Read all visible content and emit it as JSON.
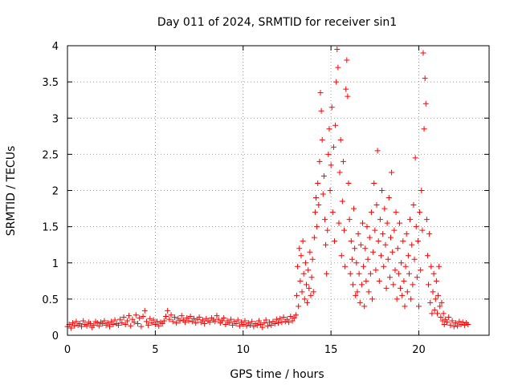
{
  "chart_data": {
    "type": "scatter",
    "title": "Day 011 of 2024, SRMTID for receiver sin1",
    "xlabel": "GPS time / hours",
    "ylabel": "SRMTID / TECUs",
    "xlim": [
      0,
      24
    ],
    "ylim": [
      0,
      4
    ],
    "xticks": [
      0,
      5,
      10,
      15,
      20
    ],
    "yticks": [
      0,
      0.5,
      1,
      1.5,
      2,
      2.5,
      3,
      3.5,
      4
    ],
    "xtick_labels": [
      "0",
      "5",
      "10",
      "15",
      "20"
    ],
    "ytick_labels": [
      "0",
      "0.5",
      "1",
      "1.5",
      "2",
      "2.5",
      "3",
      "3.5",
      "4"
    ],
    "grid": true,
    "marker": "+",
    "color": "#ff0000",
    "series": [
      {
        "name": "sin1",
        "points": [
          [
            0.0,
            0.12
          ],
          [
            0.1,
            0.15
          ],
          [
            0.2,
            0.1
          ],
          [
            0.3,
            0.17
          ],
          [
            0.4,
            0.13
          ],
          [
            0.5,
            0.19
          ],
          [
            0.6,
            0.14
          ],
          [
            0.7,
            0.16
          ],
          [
            0.8,
            0.12
          ],
          [
            0.9,
            0.2
          ],
          [
            1.0,
            0.15
          ],
          [
            1.1,
            0.13
          ],
          [
            1.2,
            0.18
          ],
          [
            1.3,
            0.16
          ],
          [
            1.4,
            0.11
          ],
          [
            1.5,
            0.14
          ],
          [
            1.6,
            0.19
          ],
          [
            1.7,
            0.17
          ],
          [
            1.8,
            0.13
          ],
          [
            1.9,
            0.18
          ],
          [
            2.0,
            0.16
          ],
          [
            2.1,
            0.2
          ],
          [
            2.2,
            0.14
          ],
          [
            2.3,
            0.17
          ],
          [
            2.4,
            0.12
          ],
          [
            2.5,
            0.19
          ],
          [
            2.6,
            0.15
          ],
          [
            2.7,
            0.21
          ],
          [
            2.8,
            0.16
          ],
          [
            2.9,
            0.14
          ],
          [
            3.0,
            0.22
          ],
          [
            3.1,
            0.17
          ],
          [
            3.2,
            0.25
          ],
          [
            3.3,
            0.15
          ],
          [
            3.4,
            0.2
          ],
          [
            3.5,
            0.27
          ],
          [
            3.6,
            0.13
          ],
          [
            3.7,
            0.22
          ],
          [
            3.8,
            0.18
          ],
          [
            3.9,
            0.28
          ],
          [
            4.0,
            0.16
          ],
          [
            4.1,
            0.24
          ],
          [
            4.2,
            0.12
          ],
          [
            4.3,
            0.26
          ],
          [
            4.4,
            0.34
          ],
          [
            4.5,
            0.19
          ],
          [
            4.6,
            0.14
          ],
          [
            4.7,
            0.23
          ],
          [
            4.8,
            0.17
          ],
          [
            4.9,
            0.21
          ],
          [
            5.0,
            0.15
          ],
          [
            5.1,
            0.19
          ],
          [
            5.2,
            0.13
          ],
          [
            5.3,
            0.18
          ],
          [
            5.4,
            0.16
          ],
          [
            5.5,
            0.2
          ],
          [
            5.6,
            0.26
          ],
          [
            5.7,
            0.34
          ],
          [
            5.8,
            0.22
          ],
          [
            5.9,
            0.28
          ],
          [
            6.0,
            0.19
          ],
          [
            6.1,
            0.25
          ],
          [
            6.2,
            0.17
          ],
          [
            6.3,
            0.23
          ],
          [
            6.4,
            0.2
          ],
          [
            6.5,
            0.27
          ],
          [
            6.6,
            0.21
          ],
          [
            6.7,
            0.18
          ],
          [
            6.8,
            0.24
          ],
          [
            6.9,
            0.2
          ],
          [
            7.0,
            0.26
          ],
          [
            7.1,
            0.19
          ],
          [
            7.2,
            0.23
          ],
          [
            7.3,
            0.17
          ],
          [
            7.4,
            0.22
          ],
          [
            7.5,
            0.25
          ],
          [
            7.6,
            0.18
          ],
          [
            7.7,
            0.21
          ],
          [
            7.8,
            0.16
          ],
          [
            7.9,
            0.23
          ],
          [
            8.0,
            0.2
          ],
          [
            8.1,
            0.18
          ],
          [
            8.2,
            0.24
          ],
          [
            8.3,
            0.21
          ],
          [
            8.4,
            0.19
          ],
          [
            8.5,
            0.27
          ],
          [
            8.6,
            0.22
          ],
          [
            8.7,
            0.17
          ],
          [
            8.8,
            0.2
          ],
          [
            8.9,
            0.24
          ],
          [
            9.0,
            0.15
          ],
          [
            9.1,
            0.2
          ],
          [
            9.2,
            0.17
          ],
          [
            9.3,
            0.22
          ],
          [
            9.4,
            0.14
          ],
          [
            9.5,
            0.19
          ],
          [
            9.6,
            0.16
          ],
          [
            9.7,
            0.21
          ],
          [
            9.8,
            0.13
          ],
          [
            9.9,
            0.18
          ],
          [
            10.0,
            0.15
          ],
          [
            10.1,
            0.2
          ],
          [
            10.2,
            0.13
          ],
          [
            10.3,
            0.17
          ],
          [
            10.4,
            0.14
          ],
          [
            10.5,
            0.19
          ],
          [
            10.6,
            0.12
          ],
          [
            10.7,
            0.16
          ],
          [
            10.8,
            0.14
          ],
          [
            10.9,
            0.2
          ],
          [
            11.0,
            0.15
          ],
          [
            11.1,
            0.11
          ],
          [
            11.2,
            0.17
          ],
          [
            11.3,
            0.21
          ],
          [
            11.4,
            0.13
          ],
          [
            11.5,
            0.18
          ],
          [
            11.6,
            0.14
          ],
          [
            11.7,
            0.19
          ],
          [
            11.8,
            0.16
          ],
          [
            11.9,
            0.22
          ],
          [
            12.0,
            0.17
          ],
          [
            12.1,
            0.23
          ],
          [
            12.2,
            0.18
          ],
          [
            12.3,
            0.25
          ],
          [
            12.4,
            0.19
          ],
          [
            12.5,
            0.22
          ],
          [
            12.6,
            0.18
          ],
          [
            12.7,
            0.26
          ],
          [
            12.8,
            0.2
          ],
          [
            12.9,
            0.24
          ],
          [
            13.0,
            0.28
          ],
          [
            13.05,
            0.55
          ],
          [
            13.1,
            0.95
          ],
          [
            13.15,
            0.4
          ],
          [
            13.2,
            1.2
          ],
          [
            13.25,
            0.75
          ],
          [
            13.3,
            1.1
          ],
          [
            13.35,
            0.6
          ],
          [
            13.4,
            1.3
          ],
          [
            13.45,
            0.85
          ],
          [
            13.5,
            0.5
          ],
          [
            13.55,
            1.0
          ],
          [
            13.6,
            0.7
          ],
          [
            13.65,
            0.45
          ],
          [
            13.7,
            0.9
          ],
          [
            13.75,
            0.65
          ],
          [
            13.8,
            1.15
          ],
          [
            13.85,
            0.55
          ],
          [
            13.9,
            0.8
          ],
          [
            13.95,
            1.05
          ],
          [
            14.0,
            0.6
          ],
          [
            14.05,
            1.35
          ],
          [
            14.1,
            1.7
          ],
          [
            14.15,
            1.9
          ],
          [
            14.2,
            1.5
          ],
          [
            14.25,
            2.1
          ],
          [
            14.3,
            1.8
          ],
          [
            14.35,
            2.4
          ],
          [
            14.4,
            3.35
          ],
          [
            14.45,
            3.1
          ],
          [
            14.5,
            2.7
          ],
          [
            14.55,
            1.95
          ],
          [
            14.6,
            2.2
          ],
          [
            14.65,
            1.6
          ],
          [
            14.7,
            1.25
          ],
          [
            14.75,
            0.85
          ],
          [
            14.8,
            1.45
          ],
          [
            14.85,
            2.5
          ],
          [
            14.9,
            2.85
          ],
          [
            14.95,
            2.0
          ],
          [
            15.0,
            2.35
          ],
          [
            15.05,
            3.15
          ],
          [
            15.1,
            1.7
          ],
          [
            15.15,
            2.6
          ],
          [
            15.2,
            1.3
          ],
          [
            15.25,
            2.9
          ],
          [
            15.3,
            3.5
          ],
          [
            15.35,
            3.95
          ],
          [
            15.4,
            3.7
          ],
          [
            15.45,
            1.55
          ],
          [
            15.5,
            2.25
          ],
          [
            15.55,
            2.7
          ],
          [
            15.6,
            1.1
          ],
          [
            15.65,
            1.85
          ],
          [
            15.7,
            2.4
          ],
          [
            15.75,
            1.45
          ],
          [
            15.8,
            0.95
          ],
          [
            15.85,
            3.4
          ],
          [
            15.9,
            3.8
          ],
          [
            15.95,
            3.3
          ],
          [
            16.0,
            2.1
          ],
          [
            16.05,
            1.6
          ],
          [
            16.1,
            0.85
          ],
          [
            16.15,
            1.3
          ],
          [
            16.2,
            1.05
          ],
          [
            16.25,
            0.7
          ],
          [
            16.3,
            1.75
          ],
          [
            16.35,
            1.2
          ],
          [
            16.4,
            0.55
          ],
          [
            16.45,
            1.0
          ],
          [
            16.5,
            0.6
          ],
          [
            16.55,
            1.4
          ],
          [
            16.6,
            0.85
          ],
          [
            16.65,
            0.45
          ],
          [
            16.7,
            1.25
          ],
          [
            16.75,
            0.7
          ],
          [
            16.8,
            1.55
          ],
          [
            16.85,
            0.95
          ],
          [
            16.9,
            0.4
          ],
          [
            16.95,
            1.2
          ],
          [
            17.0,
            0.75
          ],
          [
            17.05,
            1.5
          ],
          [
            17.1,
            1.05
          ],
          [
            17.15,
            0.6
          ],
          [
            17.2,
            1.35
          ],
          [
            17.25,
            0.85
          ],
          [
            17.3,
            1.7
          ],
          [
            17.35,
            0.5
          ],
          [
            17.4,
            1.15
          ],
          [
            17.45,
            2.1
          ],
          [
            17.5,
            1.45
          ],
          [
            17.55,
            0.9
          ],
          [
            17.6,
            1.8
          ],
          [
            17.65,
            2.55
          ],
          [
            17.7,
            1.3
          ],
          [
            17.75,
            0.75
          ],
          [
            17.8,
            1.6
          ],
          [
            17.85,
            1.1
          ],
          [
            17.9,
            2.0
          ],
          [
            17.95,
            1.4
          ],
          [
            18.0,
            0.95
          ],
          [
            18.05,
            1.75
          ],
          [
            18.1,
            1.25
          ],
          [
            18.15,
            0.65
          ],
          [
            18.2,
            1.55
          ],
          [
            18.25,
            1.05
          ],
          [
            18.3,
            1.9
          ],
          [
            18.35,
            0.8
          ],
          [
            18.4,
            1.35
          ],
          [
            18.45,
            2.25
          ],
          [
            18.5,
            1.15
          ],
          [
            18.55,
            0.7
          ],
          [
            18.6,
            1.45
          ],
          [
            18.65,
            0.9
          ],
          [
            18.7,
            1.7
          ],
          [
            18.75,
            0.5
          ],
          [
            18.8,
            1.2
          ],
          [
            18.85,
            0.85
          ],
          [
            18.9,
            1.55
          ],
          [
            18.95,
            0.65
          ],
          [
            19.0,
            1.0
          ],
          [
            19.05,
            0.55
          ],
          [
            19.1,
            1.3
          ],
          [
            19.15,
            0.75
          ],
          [
            19.2,
            0.4
          ],
          [
            19.25,
            0.95
          ],
          [
            19.3,
            1.4
          ],
          [
            19.35,
            0.6
          ],
          [
            19.4,
            1.1
          ],
          [
            19.45,
            0.85
          ],
          [
            19.5,
            1.6
          ],
          [
            19.55,
            0.5
          ],
          [
            19.6,
            1.25
          ],
          [
            19.65,
            0.7
          ],
          [
            19.7,
            1.8
          ],
          [
            19.75,
            1.05
          ],
          [
            19.8,
            2.45
          ],
          [
            19.85,
            1.5
          ],
          [
            19.9,
            0.8
          ],
          [
            19.95,
            1.3
          ],
          [
            20.0,
            0.4
          ],
          [
            20.05,
            1.7
          ],
          [
            20.1,
            0.9
          ],
          [
            20.15,
            2.0
          ],
          [
            20.2,
            1.45
          ],
          [
            20.25,
            3.9
          ],
          [
            20.3,
            2.85
          ],
          [
            20.35,
            3.55
          ],
          [
            20.4,
            3.2
          ],
          [
            20.45,
            1.6
          ],
          [
            20.5,
            1.1
          ],
          [
            20.55,
            0.7
          ],
          [
            20.6,
            1.4
          ],
          [
            20.65,
            0.45
          ],
          [
            20.7,
            0.95
          ],
          [
            20.75,
            0.3
          ],
          [
            20.8,
            0.6
          ],
          [
            20.85,
            0.85
          ],
          [
            20.9,
            0.35
          ],
          [
            20.95,
            0.5
          ],
          [
            21.0,
            0.75
          ],
          [
            21.05,
            0.3
          ],
          [
            21.1,
            0.55
          ],
          [
            21.15,
            0.95
          ],
          [
            21.2,
            0.4
          ],
          [
            21.25,
            0.25
          ],
          [
            21.3,
            0.45
          ],
          [
            21.35,
            0.2
          ],
          [
            21.4,
            0.3
          ],
          [
            21.45,
            0.15
          ],
          [
            21.5,
            0.22
          ],
          [
            21.6,
            0.18
          ],
          [
            21.7,
            0.25
          ],
          [
            21.8,
            0.14
          ],
          [
            21.9,
            0.2
          ],
          [
            22.0,
            0.12
          ],
          [
            22.1,
            0.17
          ],
          [
            22.2,
            0.13
          ],
          [
            22.3,
            0.19
          ],
          [
            22.4,
            0.15
          ],
          [
            22.5,
            0.18
          ],
          [
            22.6,
            0.14
          ],
          [
            22.7,
            0.17
          ],
          [
            22.8,
            0.15
          ]
        ]
      }
    ]
  }
}
